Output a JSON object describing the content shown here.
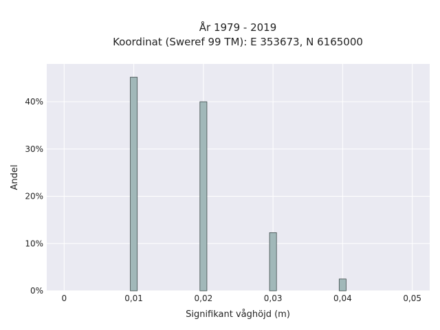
{
  "chart_data": {
    "type": "bar",
    "title": "År 1979 - 2019",
    "subtitle": "Koordinat (Sweref 99 TM): E 353673, N 6165000",
    "xlabel": "Signifikant våghöjd (m)",
    "ylabel": "Andel",
    "x_ticks": [
      "0",
      "0,01",
      "0,02",
      "0,03",
      "0,04",
      "0,05"
    ],
    "y_ticks": [
      "0%",
      "10%",
      "20%",
      "30%",
      "40%"
    ],
    "xlim": [
      -0.0025,
      0.0525
    ],
    "ylim": [
      0,
      0.48
    ],
    "grid": true,
    "colors": {
      "background": "#eaeaf2",
      "bar_fill": "#a1b8b9",
      "bar_edge": "#3e4a4a",
      "grid": "#ffffff"
    },
    "bars": [
      {
        "x": 0.01,
        "value": 0.452
      },
      {
        "x": 0.02,
        "value": 0.4
      },
      {
        "x": 0.03,
        "value": 0.123
      },
      {
        "x": 0.04,
        "value": 0.025
      }
    ]
  }
}
